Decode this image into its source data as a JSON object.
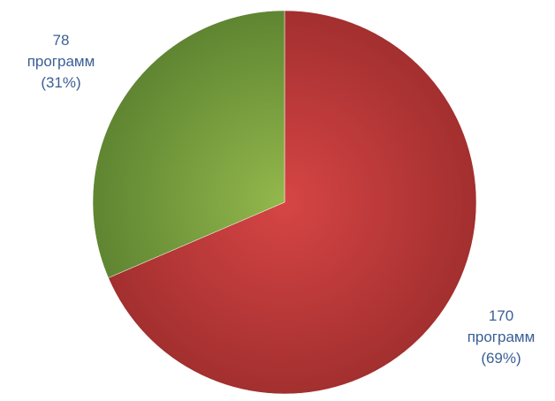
{
  "chart_data": {
    "type": "pie",
    "title": "",
    "start_angle_deg": 0,
    "direction": "clockwise",
    "slices": [
      {
        "value": 170,
        "percent": 69,
        "color": "#c03a3a",
        "color_light": "#d64545",
        "color_dark": "#a32f2f",
        "label": {
          "line1": "170",
          "line2": "программ",
          "line3": "(69%)"
        }
      },
      {
        "value": 78,
        "percent": 31,
        "color": "#7aa03e",
        "color_light": "#93b84c",
        "color_dark": "#5f8532",
        "label": {
          "line1": "78",
          "line2": "программ",
          "line3": "(31%)"
        }
      }
    ],
    "label_color": "#3a5f95",
    "legend": "none",
    "grid": false
  }
}
